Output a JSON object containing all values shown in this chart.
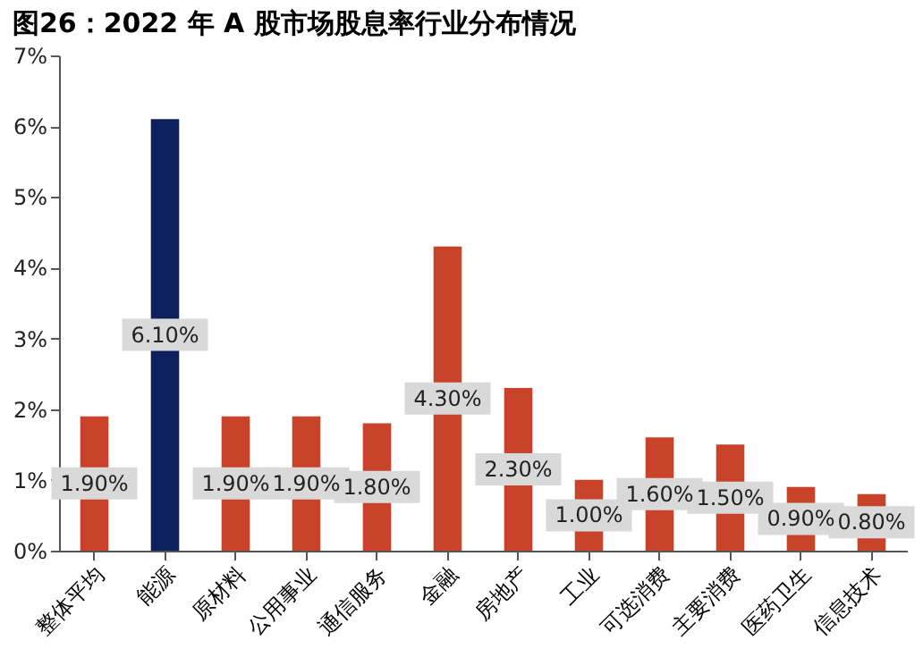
{
  "chart_data": {
    "type": "bar",
    "title": "图26：2022 年 A 股市场股息率行业分布情况",
    "categories": [
      "整体平均",
      "能源",
      "原材料",
      "公用事业",
      "通信服务",
      "金融",
      "房地产",
      "工业",
      "可选消费",
      "主要消费",
      "医药卫生",
      "信息技术"
    ],
    "values": [
      1.9,
      6.1,
      1.9,
      1.9,
      1.8,
      4.3,
      2.3,
      1.0,
      1.6,
      1.5,
      0.9,
      0.8
    ],
    "colors": [
      "#c9432a",
      "#0d1f5c",
      "#c9432a",
      "#c9432a",
      "#c9432a",
      "#c9432a",
      "#c9432a",
      "#c9432a",
      "#c9432a",
      "#c9432a",
      "#c9432a",
      "#c9432a"
    ],
    "value_labels": [
      "1.90%",
      "6.10%",
      "1.90%",
      "1.90%",
      "1.80%",
      "4.30%",
      "2.30%",
      "1.00%",
      "1.60%",
      "1.50%",
      "0.90%",
      "0.80%"
    ],
    "ylim": [
      0,
      7
    ],
    "yticks": [
      {
        "value": 0,
        "label": "0%"
      },
      {
        "value": 1,
        "label": "1%"
      },
      {
        "value": 2,
        "label": "2%"
      },
      {
        "value": 3,
        "label": "3%"
      },
      {
        "value": 4,
        "label": "4%"
      },
      {
        "value": 5,
        "label": "5%"
      },
      {
        "value": 6,
        "label": "6%"
      },
      {
        "value": 7,
        "label": "7%"
      }
    ],
    "grid": false
  }
}
